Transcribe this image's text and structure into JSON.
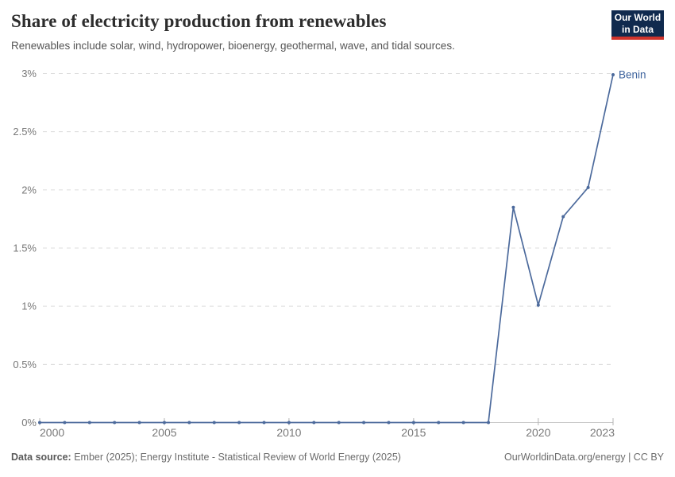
{
  "header": {
    "title": "Share of electricity production from renewables",
    "subtitle": "Renewables include solar, wind, hydropower, bioenergy, geothermal, wave, and tidal sources.",
    "logo": {
      "line1": "Our World",
      "line2": "in Data"
    }
  },
  "chart_data": {
    "type": "line",
    "title": "Share of electricity production from renewables",
    "x": [
      2000,
      2001,
      2002,
      2003,
      2004,
      2005,
      2006,
      2007,
      2008,
      2009,
      2010,
      2011,
      2012,
      2013,
      2014,
      2015,
      2016,
      2017,
      2018,
      2019,
      2020,
      2021,
      2022,
      2023
    ],
    "series": [
      {
        "name": "Benin",
        "values": [
          0,
          0,
          0,
          0,
          0,
          0,
          0,
          0,
          0,
          0,
          0,
          0,
          0,
          0,
          0,
          0,
          0,
          0,
          0,
          1.85,
          1.01,
          1.77,
          2.02,
          2.99
        ]
      }
    ],
    "xlabel": "",
    "ylabel": "",
    "xlim": [
      2000,
      2023
    ],
    "ylim": [
      0,
      3
    ],
    "yticks": [
      {
        "value": 0,
        "label": "0%"
      },
      {
        "value": 0.5,
        "label": "0.5%"
      },
      {
        "value": 1,
        "label": "1%"
      },
      {
        "value": 1.5,
        "label": "1.5%"
      },
      {
        "value": 2,
        "label": "2%"
      },
      {
        "value": 2.5,
        "label": "2.5%"
      },
      {
        "value": 3,
        "label": "3%"
      }
    ],
    "xticks": [
      {
        "value": 2000,
        "label": "2000"
      },
      {
        "value": 2005,
        "label": "2005"
      },
      {
        "value": 2010,
        "label": "2010"
      },
      {
        "value": 2015,
        "label": "2015"
      },
      {
        "value": 2020,
        "label": "2020"
      },
      {
        "value": 2023,
        "label": "2023"
      }
    ],
    "grid": "horizontal-dashed",
    "legend_position": "line-end-label"
  },
  "footer": {
    "source_label": "Data source:",
    "source_text": "Ember (2025); Energy Institute - Statistical Review of World Energy (2025)",
    "license": "OurWorldinData.org/energy | CC BY"
  },
  "colors": {
    "line": "#4c6a9c",
    "series_label": "#3d639d",
    "grid": "#dcdcdc",
    "axis": "#c8c8c8",
    "tick": "#b3b3b3",
    "axis_text": "#787878",
    "title": "#2d2d2d",
    "subtitle": "#565656",
    "footer_text": "#6b6b6b",
    "logo_bg": "#102a4e",
    "logo_red": "#d0342c"
  }
}
